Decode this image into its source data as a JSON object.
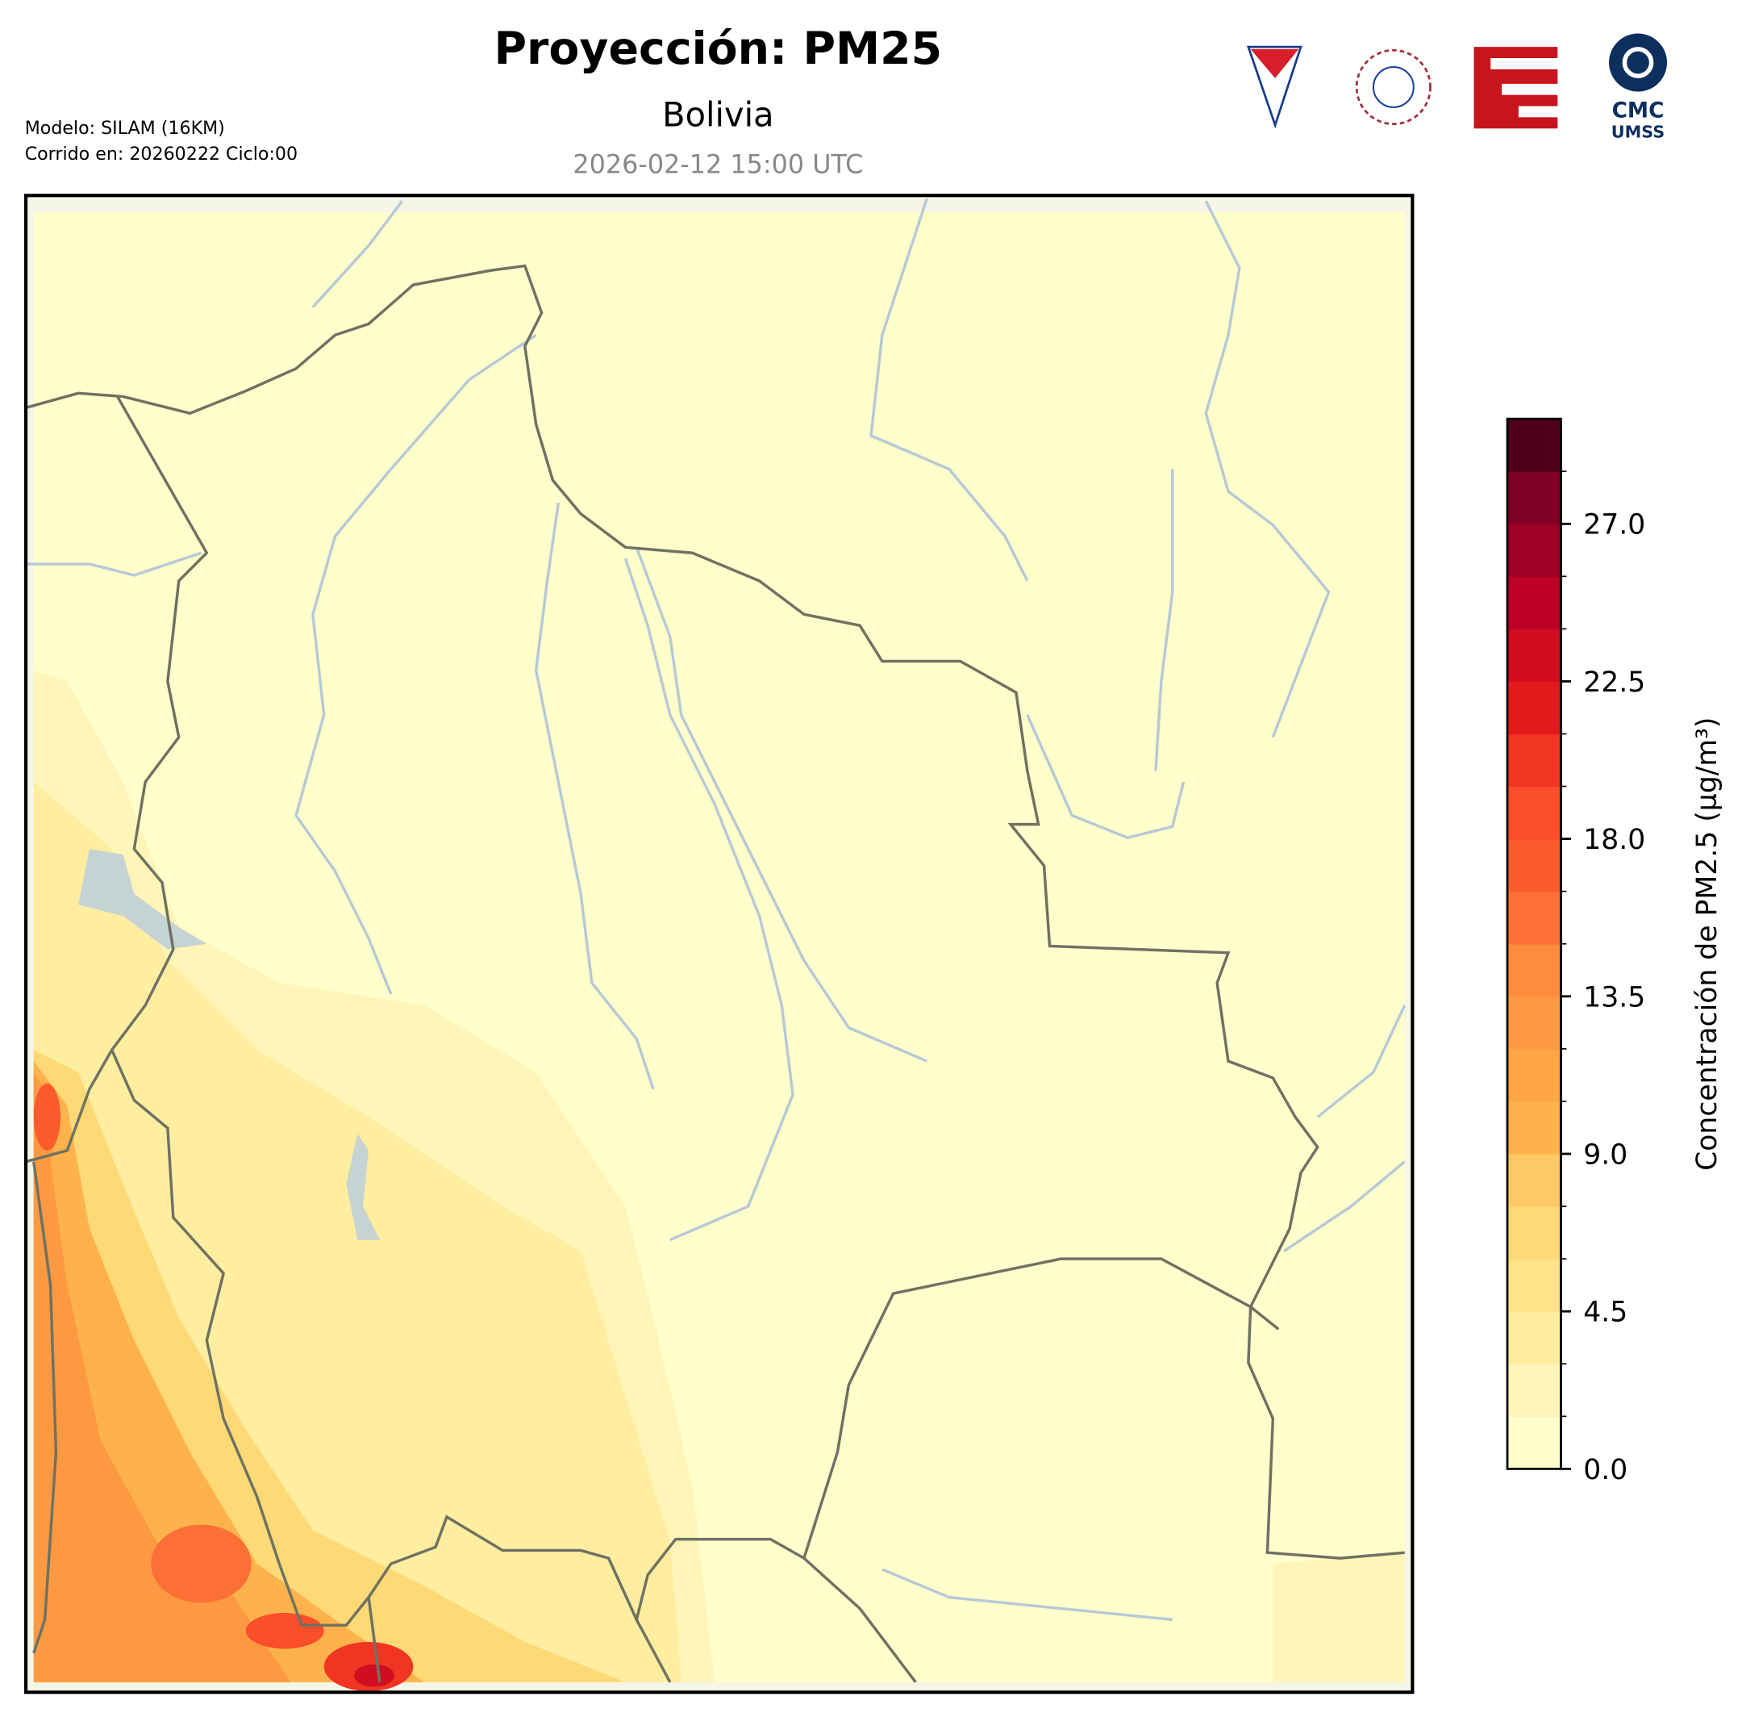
{
  "header": {
    "title": "Proyección: PM25",
    "subtitle": "Bolivia",
    "date": "2026-02-12 15:00 UTC",
    "model": "Modelo: SILAM (16KM)",
    "run": "Corrido en: 20260222 Ciclo:00"
  },
  "logos": {
    "cmc": "CMC",
    "umss": "UMSS"
  },
  "colorbar": {
    "label": "Concentración de PM2.5 (µg/m³)",
    "lim": [
      0,
      30
    ],
    "ticks": [
      {
        "value": 0,
        "label": "0.0"
      },
      {
        "value": 4.5,
        "label": "4.5"
      },
      {
        "value": 9,
        "label": "9.0"
      },
      {
        "value": 13.5,
        "label": "13.5"
      },
      {
        "value": 18,
        "label": "18.0"
      },
      {
        "value": 22.5,
        "label": "22.5"
      },
      {
        "value": 27,
        "label": "27.0"
      }
    ],
    "colors": [
      "#ffffcc",
      "#fff5b8",
      "#ffeda0",
      "#fee38b",
      "#fed976",
      "#fec965",
      "#feb24c",
      "#fea546",
      "#fd9a41",
      "#fd8d3c",
      "#fc7035",
      "#fc5b2e",
      "#fc4e2a",
      "#f03523",
      "#e31a1c",
      "#d00d21",
      "#bd0026",
      "#a00026",
      "#800026",
      "#4d0018"
    ]
  }
}
